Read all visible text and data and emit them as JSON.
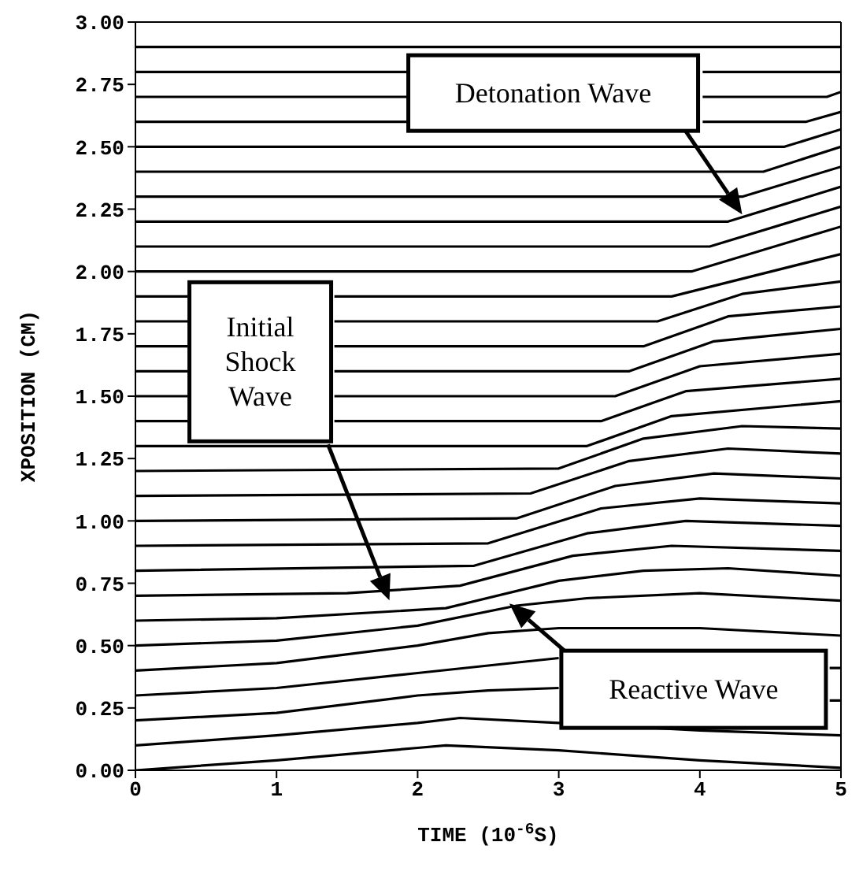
{
  "chart_data": {
    "type": "line",
    "xlabel": "TIME (10$^{-6}$S)",
    "ylabel": "XPOSITION (CM)",
    "xlim": [
      0,
      5
    ],
    "xticks": [
      0,
      1,
      2,
      3,
      4,
      5
    ],
    "ylim": [
      0,
      3
    ],
    "yticks": [
      {
        "value": 0,
        "label": "0.00"
      },
      {
        "value": 0.25,
        "label": "0.25"
      },
      {
        "value": 0.5,
        "label": "0.50"
      },
      {
        "value": 0.75,
        "label": "0.75"
      },
      {
        "value": 1,
        "label": "1.00"
      },
      {
        "value": 1.25,
        "label": "1.25"
      },
      {
        "value": 1.5,
        "label": "1.50"
      },
      {
        "value": 1.75,
        "label": "1.75"
      },
      {
        "value": 2,
        "label": "2.00"
      },
      {
        "value": 2.25,
        "label": "2.25"
      },
      {
        "value": 2.5,
        "label": "2.50"
      },
      {
        "value": 2.75,
        "label": "2.75"
      },
      {
        "value": 3,
        "label": "3.00"
      }
    ],
    "grid": false,
    "line_style": "solid",
    "annotations": [
      "Detonation Wave",
      "Initial Shock Wave",
      "Reactive Wave"
    ],
    "series": [
      {
        "color": "#000000",
        "x": [
          0,
          1,
          2,
          2.2,
          3,
          4,
          5
        ],
        "values": [
          0,
          0.04,
          0.09,
          0.1,
          0.08,
          0.04,
          0.01
        ]
      },
      {
        "color": "#000000",
        "x": [
          0,
          1,
          2,
          2.3,
          3,
          4,
          5
        ],
        "values": [
          0.1,
          0.14,
          0.19,
          0.21,
          0.19,
          0.16,
          0.14
        ]
      },
      {
        "color": "#000000",
        "x": [
          0,
          1,
          2,
          2.5,
          3,
          4,
          4.92,
          5
        ],
        "values": [
          0.2,
          0.23,
          0.3,
          0.32,
          0.33,
          null,
          0.28,
          0.28
        ]
      },
      {
        "color": "#000000",
        "x": [
          0,
          1,
          2,
          2.5,
          3,
          4,
          4.92,
          5
        ],
        "values": [
          0.3,
          0.33,
          0.39,
          0.42,
          0.45,
          null,
          0.41,
          0.41
        ]
      },
      {
        "color": "#000000",
        "x": [
          0,
          1,
          2,
          2.5,
          3,
          4,
          5
        ],
        "values": [
          0.4,
          0.43,
          0.5,
          0.55,
          0.57,
          0.57,
          0.54
        ]
      },
      {
        "color": "#000000",
        "x": [
          0,
          1,
          2,
          2.7,
          3.2,
          4,
          5
        ],
        "values": [
          0.5,
          0.52,
          0.58,
          0.66,
          0.69,
          0.71,
          0.68
        ]
      },
      {
        "color": "#000000",
        "x": [
          0,
          1,
          2.2,
          3,
          3.6,
          4.2,
          5
        ],
        "values": [
          0.6,
          0.61,
          0.65,
          0.76,
          0.8,
          0.81,
          0.78
        ]
      },
      {
        "color": "#000000",
        "x": [
          0,
          1.5,
          2.3,
          3.1,
          3.8,
          5
        ],
        "values": [
          0.7,
          0.71,
          0.74,
          0.86,
          0.9,
          0.88
        ]
      },
      {
        "color": "#000000",
        "x": [
          0,
          2.4,
          3.2,
          3.9,
          5
        ],
        "values": [
          0.8,
          0.82,
          0.95,
          1.0,
          0.98
        ]
      },
      {
        "color": "#000000",
        "x": [
          0,
          2.5,
          3.3,
          4,
          5
        ],
        "values": [
          0.9,
          0.91,
          1.05,
          1.09,
          1.07
        ]
      },
      {
        "color": "#000000",
        "x": [
          0,
          2.7,
          3.4,
          4.1,
          5
        ],
        "values": [
          1.0,
          1.01,
          1.14,
          1.19,
          1.17
        ]
      },
      {
        "color": "#000000",
        "x": [
          0,
          2.8,
          3.5,
          4.2,
          5
        ],
        "values": [
          1.1,
          1.11,
          1.24,
          1.29,
          1.27
        ]
      },
      {
        "color": "#000000",
        "x": [
          0,
          3,
          3.6,
          4.3,
          5
        ],
        "values": [
          1.2,
          1.21,
          1.33,
          1.38,
          1.37
        ]
      },
      {
        "color": "#000000",
        "x": [
          0,
          3.2,
          3.8,
          5
        ],
        "values": [
          1.3,
          1.3,
          1.42,
          1.48
        ]
      },
      {
        "color": "#000000",
        "x": [
          0,
          0.37,
          0.9,
          1.41,
          3.3,
          3.9,
          5
        ],
        "values": [
          1.4,
          1.4,
          null,
          1.4,
          1.4,
          1.52,
          1.57
        ]
      },
      {
        "color": "#000000",
        "x": [
          0,
          0.37,
          0.9,
          1.41,
          3.4,
          4,
          5
        ],
        "values": [
          1.5,
          1.5,
          null,
          1.5,
          1.5,
          1.62,
          1.67
        ]
      },
      {
        "color": "#000000",
        "x": [
          0,
          0.37,
          0.9,
          1.41,
          3.5,
          4.1,
          5
        ],
        "values": [
          1.6,
          1.6,
          null,
          1.6,
          1.6,
          1.72,
          1.77
        ]
      },
      {
        "color": "#000000",
        "x": [
          0,
          0.37,
          0.9,
          1.41,
          3.6,
          4.2,
          5
        ],
        "values": [
          1.7,
          1.7,
          null,
          1.7,
          1.7,
          1.82,
          1.86
        ]
      },
      {
        "color": "#000000",
        "x": [
          0,
          0.37,
          0.9,
          1.41,
          3.7,
          4.3,
          5
        ],
        "values": [
          1.8,
          1.8,
          null,
          1.8,
          1.8,
          1.91,
          1.96
        ]
      },
      {
        "color": "#000000",
        "x": [
          0,
          0.37,
          0.9,
          1.41,
          3.8,
          5
        ],
        "values": [
          1.9,
          1.9,
          null,
          1.9,
          1.9,
          2.07
        ]
      },
      {
        "color": "#000000",
        "x": [
          0,
          3.94,
          5
        ],
        "values": [
          2.0,
          2.0,
          2.18
        ]
      },
      {
        "color": "#000000",
        "x": [
          0,
          4.07,
          5
        ],
        "values": [
          2.1,
          2.1,
          2.26
        ]
      },
      {
        "color": "#000000",
        "x": [
          0,
          4.2,
          5
        ],
        "values": [
          2.2,
          2.2,
          2.34
        ]
      },
      {
        "color": "#000000",
        "x": [
          0,
          4.3,
          5
        ],
        "values": [
          2.3,
          2.3,
          2.42
        ]
      },
      {
        "color": "#000000",
        "x": [
          0,
          4.45,
          5
        ],
        "values": [
          2.4,
          2.4,
          2.5
        ]
      },
      {
        "color": "#000000",
        "x": [
          0,
          4.6,
          5
        ],
        "values": [
          2.5,
          2.5,
          2.57
        ]
      },
      {
        "color": "#000000",
        "x": [
          0,
          1.94,
          3,
          4.02,
          4.75,
          5
        ],
        "values": [
          2.6,
          2.6,
          null,
          2.6,
          2.6,
          2.64
        ]
      },
      {
        "color": "#000000",
        "x": [
          0,
          1.94,
          3,
          4.02,
          4.9,
          5
        ],
        "values": [
          2.7,
          2.7,
          null,
          2.7,
          2.7,
          2.72
        ]
      },
      {
        "color": "#000000",
        "x": [
          0,
          1.94,
          3,
          4.02,
          5
        ],
        "values": [
          2.8,
          2.8,
          null,
          2.8,
          2.8
        ]
      },
      {
        "color": "#000000",
        "x": [
          0,
          5
        ],
        "values": [
          2.9,
          2.9
        ]
      }
    ]
  }
}
